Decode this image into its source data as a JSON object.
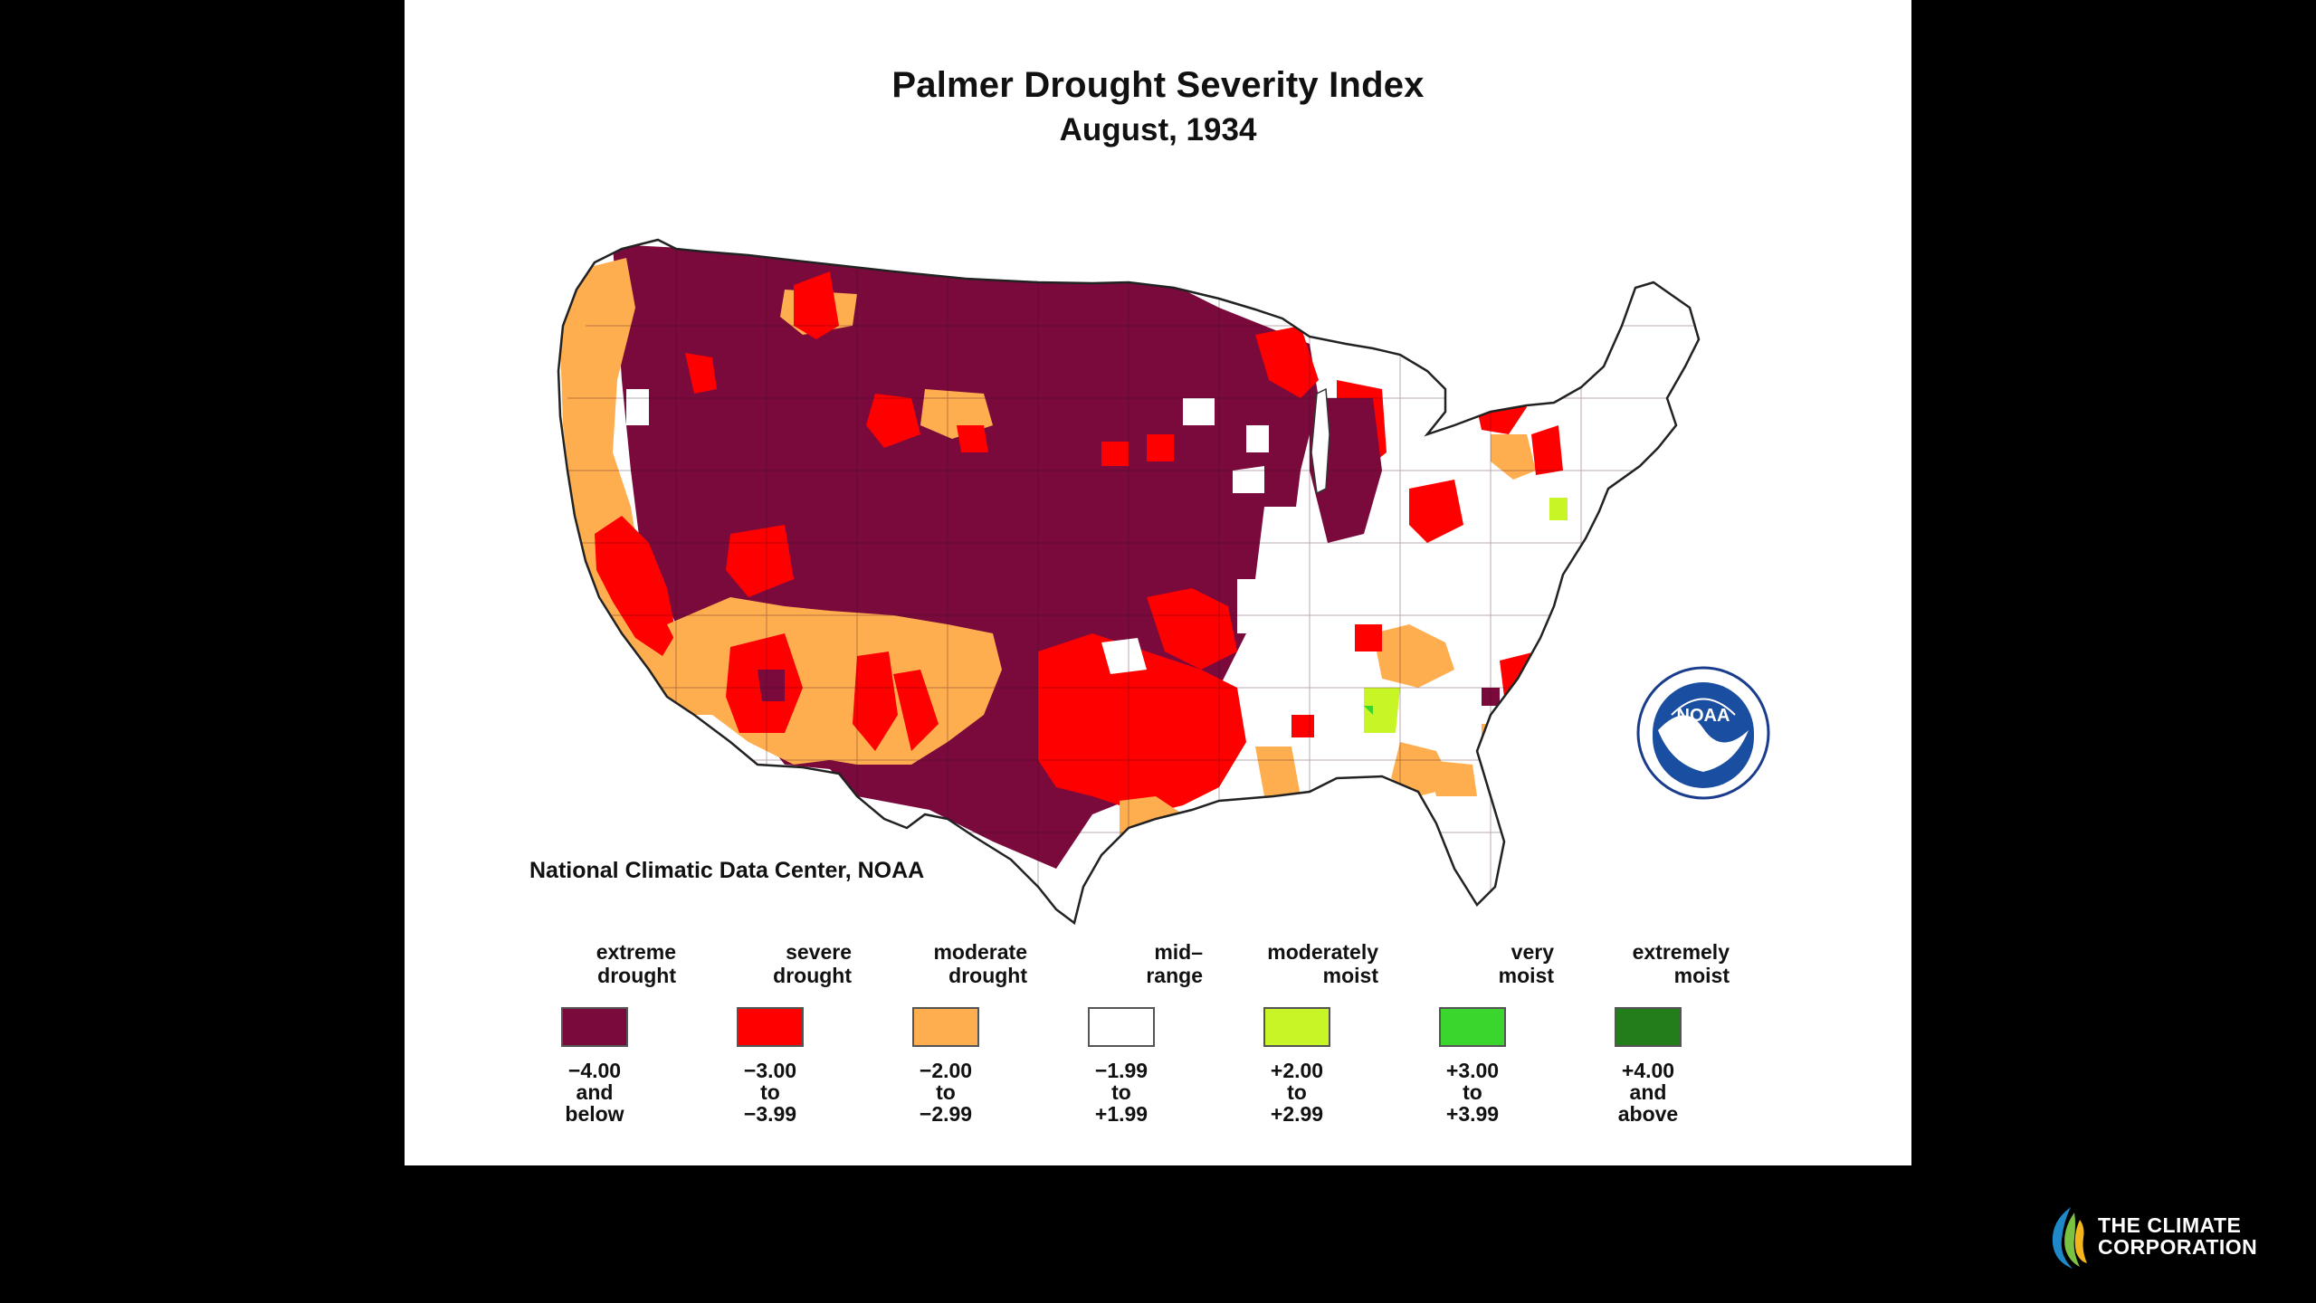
{
  "map": {
    "title": "Palmer Drought Severity Index",
    "subtitle": "August, 1934",
    "source": "National Climatic Data Center, NOAA"
  },
  "legend": [
    {
      "label": [
        "extreme",
        "drought"
      ],
      "range": [
        "−4.00",
        "and",
        "below"
      ],
      "color": "#7a0a3c"
    },
    {
      "label": [
        "severe",
        "drought"
      ],
      "range": [
        "−3.00",
        "to",
        "−3.99"
      ],
      "color": "#ff0000"
    },
    {
      "label": [
        "moderate",
        "drought"
      ],
      "range": [
        "−2.00",
        "to",
        "−2.99"
      ],
      "color": "#ffae4f"
    },
    {
      "label": [
        "mid–",
        "range"
      ],
      "range": [
        "−1.99",
        "to",
        "+1.99"
      ],
      "color": "#ffffff"
    },
    {
      "label": [
        "moderately",
        "moist"
      ],
      "range": [
        "+2.00",
        "to",
        "+2.99"
      ],
      "color": "#c8f526"
    },
    {
      "label": [
        "very",
        "moist"
      ],
      "range": [
        "+3.00",
        "to",
        "+3.99"
      ],
      "color": "#3ad62e"
    },
    {
      "label": [
        "extremely",
        "moist"
      ],
      "range": [
        "+4.00",
        "and",
        "above"
      ],
      "color": "#237d1a"
    }
  ],
  "logo": {
    "noaa_text": "NOAA",
    "icon": "noaa-seal-icon"
  },
  "brand": {
    "line1": "THE CLIMATE",
    "line2": "CORPORATION",
    "icon": "climate-corp-leaf-icon"
  }
}
